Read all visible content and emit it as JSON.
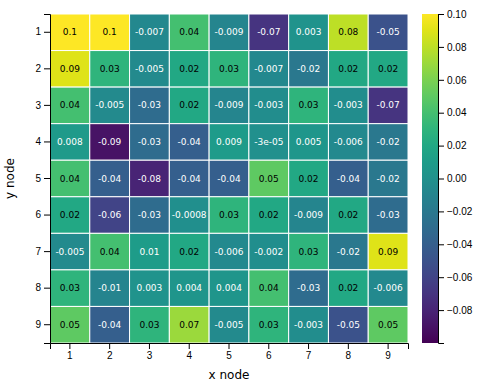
{
  "chart_data": {
    "type": "heatmap",
    "xlabel": "x node",
    "ylabel": "y node",
    "x": [
      1,
      2,
      3,
      4,
      5,
      6,
      7,
      8,
      9
    ],
    "y": [
      1,
      2,
      3,
      4,
      5,
      6,
      7,
      8,
      9
    ],
    "values": [
      [
        0.1,
        0.1,
        -0.007,
        0.04,
        -0.009,
        -0.07,
        0.003,
        0.08,
        -0.05
      ],
      [
        0.09,
        0.03,
        -0.005,
        0.02,
        0.03,
        -0.007,
        -0.02,
        0.02,
        0.02
      ],
      [
        0.04,
        -0.005,
        -0.03,
        0.02,
        -0.009,
        -0.003,
        0.03,
        -0.003,
        -0.07
      ],
      [
        0.008,
        -0.09,
        -0.03,
        -0.04,
        0.009,
        -3e-05,
        0.005,
        -0.006,
        -0.02
      ],
      [
        0.04,
        -0.04,
        -0.08,
        -0.04,
        -0.04,
        0.05,
        0.02,
        -0.04,
        -0.02
      ],
      [
        0.02,
        -0.06,
        -0.03,
        -0.0008,
        0.03,
        0.02,
        -0.009,
        0.02,
        -0.03
      ],
      [
        -0.005,
        0.04,
        0.01,
        0.02,
        -0.006,
        -0.002,
        0.03,
        -0.02,
        0.09
      ],
      [
        0.03,
        -0.01,
        0.003,
        0.004,
        0.004,
        0.04,
        -0.03,
        0.02,
        -0.006
      ],
      [
        0.05,
        -0.04,
        0.03,
        0.07,
        -0.005,
        0.03,
        -0.003,
        -0.05,
        0.05
      ]
    ],
    "value_labels": [
      [
        "0.1",
        "0.1",
        "-0.007",
        "0.04",
        "-0.009",
        "-0.07",
        "0.003",
        "0.08",
        "-0.05"
      ],
      [
        "0.09",
        "0.03",
        "-0.005",
        "0.02",
        "0.03",
        "-0.007",
        "-0.02",
        "0.02",
        "0.02"
      ],
      [
        "0.04",
        "-0.005",
        "-0.03",
        "0.02",
        "-0.009",
        "-0.003",
        "0.03",
        "-0.003",
        "-0.07"
      ],
      [
        "0.008",
        "-0.09",
        "-0.03",
        "-0.04",
        "0.009",
        "-3e-05",
        "0.005",
        "-0.006",
        "-0.02"
      ],
      [
        "0.04",
        "-0.04",
        "-0.08",
        "-0.04",
        "-0.04",
        "0.05",
        "0.02",
        "-0.04",
        "-0.02"
      ],
      [
        "0.02",
        "-0.06",
        "-0.03",
        "-0.0008",
        "0.03",
        "0.02",
        "-0.009",
        "0.02",
        "-0.03"
      ],
      [
        "-0.005",
        "0.04",
        "0.01",
        "0.02",
        "-0.006",
        "-0.002",
        "0.03",
        "-0.02",
        "0.09"
      ],
      [
        "0.03",
        "-0.01",
        "0.003",
        "0.004",
        "0.004",
        "0.04",
        "-0.03",
        "0.02",
        "-0.006"
      ],
      [
        "0.05",
        "-0.04",
        "0.03",
        "0.07",
        "-0.005",
        "0.03",
        "-0.003",
        "-0.05",
        "0.05"
      ]
    ],
    "data_labels": true,
    "colorbar_lim": [
      -0.1,
      0.1
    ],
    "colorbar_ticks": [
      {
        "value": 0.1,
        "label": "0.10"
      },
      0.08,
      0.06,
      0.04,
      0.02,
      {
        "value": 0,
        "label": "0.00"
      },
      {
        "value": -0.02,
        "label": "−0.02"
      },
      {
        "value": -0.04,
        "label": "−0.04"
      },
      {
        "value": -0.06,
        "label": "−0.06"
      },
      {
        "value": -0.08,
        "label": "−0.08"
      }
    ]
  }
}
